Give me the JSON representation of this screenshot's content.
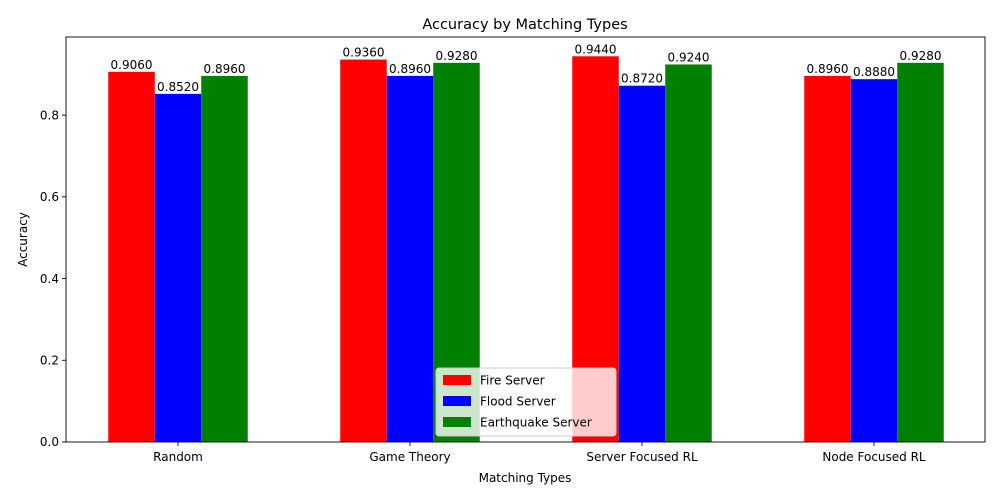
{
  "chart_data": {
    "type": "bar",
    "title": "Accuracy by Matching Types",
    "xlabel": "Matching Types",
    "ylabel": "Accuracy",
    "categories": [
      "Random",
      "Game Theory",
      "Server Focused RL",
      "Node Focused RL"
    ],
    "series": [
      {
        "name": "Fire Server",
        "color": "#ff0000",
        "values": [
          0.906,
          0.936,
          0.944,
          0.896
        ],
        "labels": [
          "0.9060",
          "0.9360",
          "0.9440",
          "0.8960"
        ]
      },
      {
        "name": "Flood Server",
        "color": "#0000ff",
        "values": [
          0.852,
          0.896,
          0.872,
          0.888
        ],
        "labels": [
          "0.8520",
          "0.8960",
          "0.8720",
          "0.8880"
        ]
      },
      {
        "name": "Earthquake Server",
        "color": "#008000",
        "values": [
          0.896,
          0.928,
          0.924,
          0.928
        ],
        "labels": [
          "0.8960",
          "0.9280",
          "0.9240",
          "0.9280"
        ]
      }
    ],
    "ylim": [
      0,
      0.9912
    ],
    "yticks": [
      0.0,
      0.2,
      0.4,
      0.6,
      0.8
    ],
    "ytick_labels": [
      "0.0",
      "0.2",
      "0.4",
      "0.6",
      "0.8"
    ],
    "legend_position": "bottom-center",
    "grid": false
  }
}
